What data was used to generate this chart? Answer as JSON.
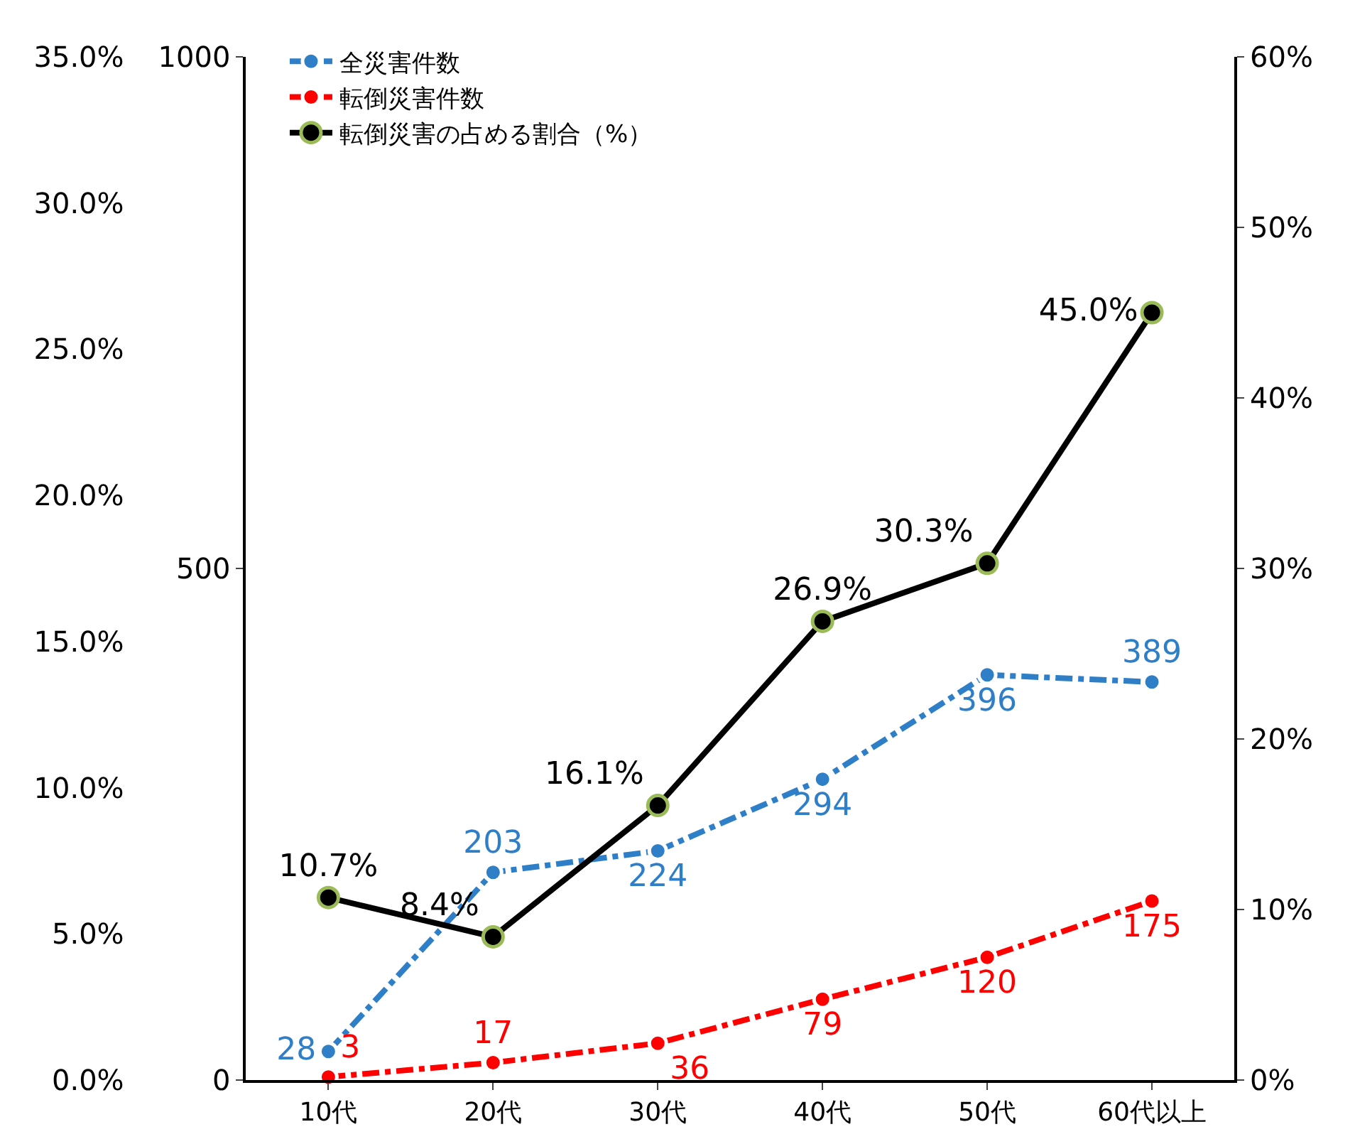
{
  "chart_data": {
    "type": "line",
    "categories": [
      "10代",
      "20代",
      "30代",
      "40代",
      "50代",
      "60代以上"
    ],
    "series": [
      {
        "name": "全災害件数",
        "color": "#2e7fc8",
        "values": [
          28,
          203,
          224,
          294,
          396,
          389
        ],
        "value_labels": [
          "28",
          "203",
          "224",
          "294",
          "396",
          "389"
        ],
        "line_style": "dashdot"
      },
      {
        "name": "転倒災害件数",
        "color": "#ff0000",
        "values": [
          3,
          17,
          36,
          79,
          120,
          175
        ],
        "value_labels": [
          "3",
          "17",
          "36",
          "79",
          "120",
          "175"
        ],
        "line_style": "dashdot"
      },
      {
        "name": "転倒災害の占める割合（%）",
        "color": "#000000",
        "axis": "y2",
        "values": [
          10.7,
          8.4,
          16.1,
          26.9,
          30.3,
          45.0
        ],
        "value_labels": [
          "10.7%",
          "8.4%",
          "16.1%",
          "26.9%",
          "30.3%",
          "45.0%"
        ],
        "line_style": "solid"
      }
    ],
    "ylim": [
      0,
      1000
    ],
    "yticks": [
      0,
      500,
      1000
    ],
    "y2lim": [
      0,
      60
    ],
    "y2ticks": [
      {
        "value": 0,
        "label": "0%"
      },
      {
        "value": 10,
        "label": "10%"
      },
      {
        "value": 20,
        "label": "20%"
      },
      {
        "value": 30,
        "label": "30%"
      },
      {
        "value": 40,
        "label": "40%"
      },
      {
        "value": 50,
        "label": "50%"
      },
      {
        "value": 60,
        "label": "60%"
      }
    ],
    "y3lim": [
      0,
      35
    ],
    "y3ticks": [
      {
        "value": 0,
        "label": "0.0%"
      },
      {
        "value": 5,
        "label": "5.0%"
      },
      {
        "value": 10,
        "label": "10.0%"
      },
      {
        "value": 15,
        "label": "15.0%"
      },
      {
        "value": 20,
        "label": "20.0%"
      },
      {
        "value": 25,
        "label": "25.0%"
      },
      {
        "value": 30,
        "label": "30.0%"
      },
      {
        "value": 35,
        "label": "35.0%"
      }
    ],
    "marker": "circle",
    "legend": "top left"
  }
}
